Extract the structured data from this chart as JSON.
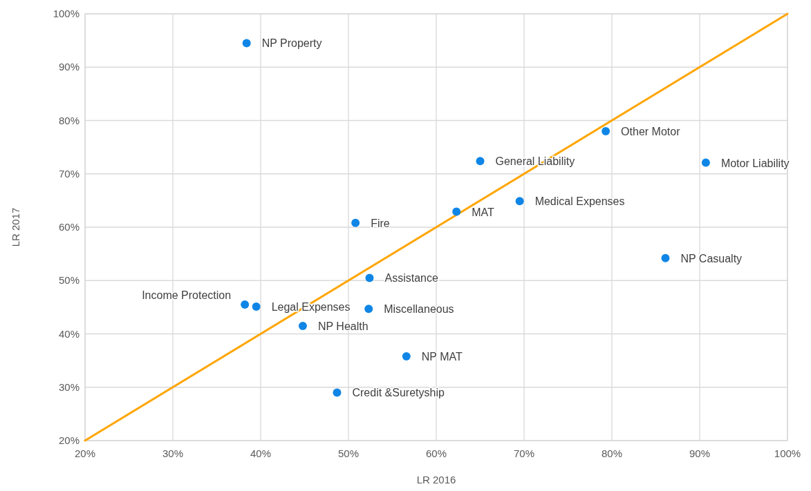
{
  "chart_data": {
    "type": "scatter",
    "xlabel": "LR 2016",
    "ylabel": "LR 2017",
    "xlim": [
      20,
      100
    ],
    "ylim": [
      20,
      100
    ],
    "xticks": [
      {
        "value": 20,
        "label": "20%"
      },
      {
        "value": 30,
        "label": "30%"
      },
      {
        "value": 40,
        "label": "40%"
      },
      {
        "value": 50,
        "label": "50%"
      },
      {
        "value": 60,
        "label": "60%"
      },
      {
        "value": 70,
        "label": "70%"
      },
      {
        "value": 80,
        "label": "80%"
      },
      {
        "value": 90,
        "label": "90%"
      },
      {
        "value": 100,
        "label": "100%"
      }
    ],
    "yticks": [
      {
        "value": 20,
        "label": "20%"
      },
      {
        "value": 30,
        "label": "30%"
      },
      {
        "value": 40,
        "label": "40%"
      },
      {
        "value": 50,
        "label": "50%"
      },
      {
        "value": 60,
        "label": "60%"
      },
      {
        "value": 70,
        "label": "70%"
      },
      {
        "value": 80,
        "label": "80%"
      },
      {
        "value": 90,
        "label": "90%"
      },
      {
        "value": 100,
        "label": "100%"
      }
    ],
    "grid": true,
    "marker": "circle",
    "series": [
      {
        "color": "#0f86e6",
        "x": [
          38.4,
          79.3,
          90.7,
          65.0,
          69.5,
          62.3,
          50.8,
          86.1,
          52.4,
          38.2,
          39.5,
          52.3,
          44.8,
          56.6,
          48.7
        ],
        "values": [
          94.5,
          78.0,
          72.1,
          72.4,
          64.9,
          62.9,
          60.8,
          54.2,
          50.5,
          45.5,
          45.1,
          44.7,
          41.5,
          35.8,
          29.0
        ]
      },
      {
        "type": "line",
        "marker": "none",
        "color": "#ffa500",
        "x": [
          20,
          100
        ],
        "values": [
          20,
          100
        ]
      }
    ],
    "annotations": [
      {
        "text": "NP Property",
        "x": 38.4,
        "y": 94.5
      },
      {
        "text": "Other Motor",
        "x": 79.3,
        "y": 78.0
      },
      {
        "text": "Motor Liability",
        "x": 90.7,
        "y": 72.1
      },
      {
        "text": "General Liability",
        "x": 65.0,
        "y": 72.4
      },
      {
        "text": "Medical Expenses",
        "x": 69.5,
        "y": 64.9
      },
      {
        "text": "MAT",
        "x": 62.3,
        "y": 62.9
      },
      {
        "text": "Fire",
        "x": 50.8,
        "y": 60.8
      },
      {
        "text": "NP Casualty",
        "x": 86.1,
        "y": 54.2
      },
      {
        "text": "Assistance",
        "x": 52.4,
        "y": 50.5
      },
      {
        "text": "Income Protection",
        "x": 38.2,
        "y": 45.5
      },
      {
        "text": "Legal Expenses",
        "x": 39.5,
        "y": 45.1
      },
      {
        "text": "Miscellaneous",
        "x": 52.3,
        "y": 44.7
      },
      {
        "text": "NP Health",
        "x": 44.8,
        "y": 41.5
      },
      {
        "text": "NP MAT",
        "x": 56.6,
        "y": 35.8
      },
      {
        "text": "Credit &Suretyship",
        "x": 48.7,
        "y": 29.0
      }
    ]
  }
}
